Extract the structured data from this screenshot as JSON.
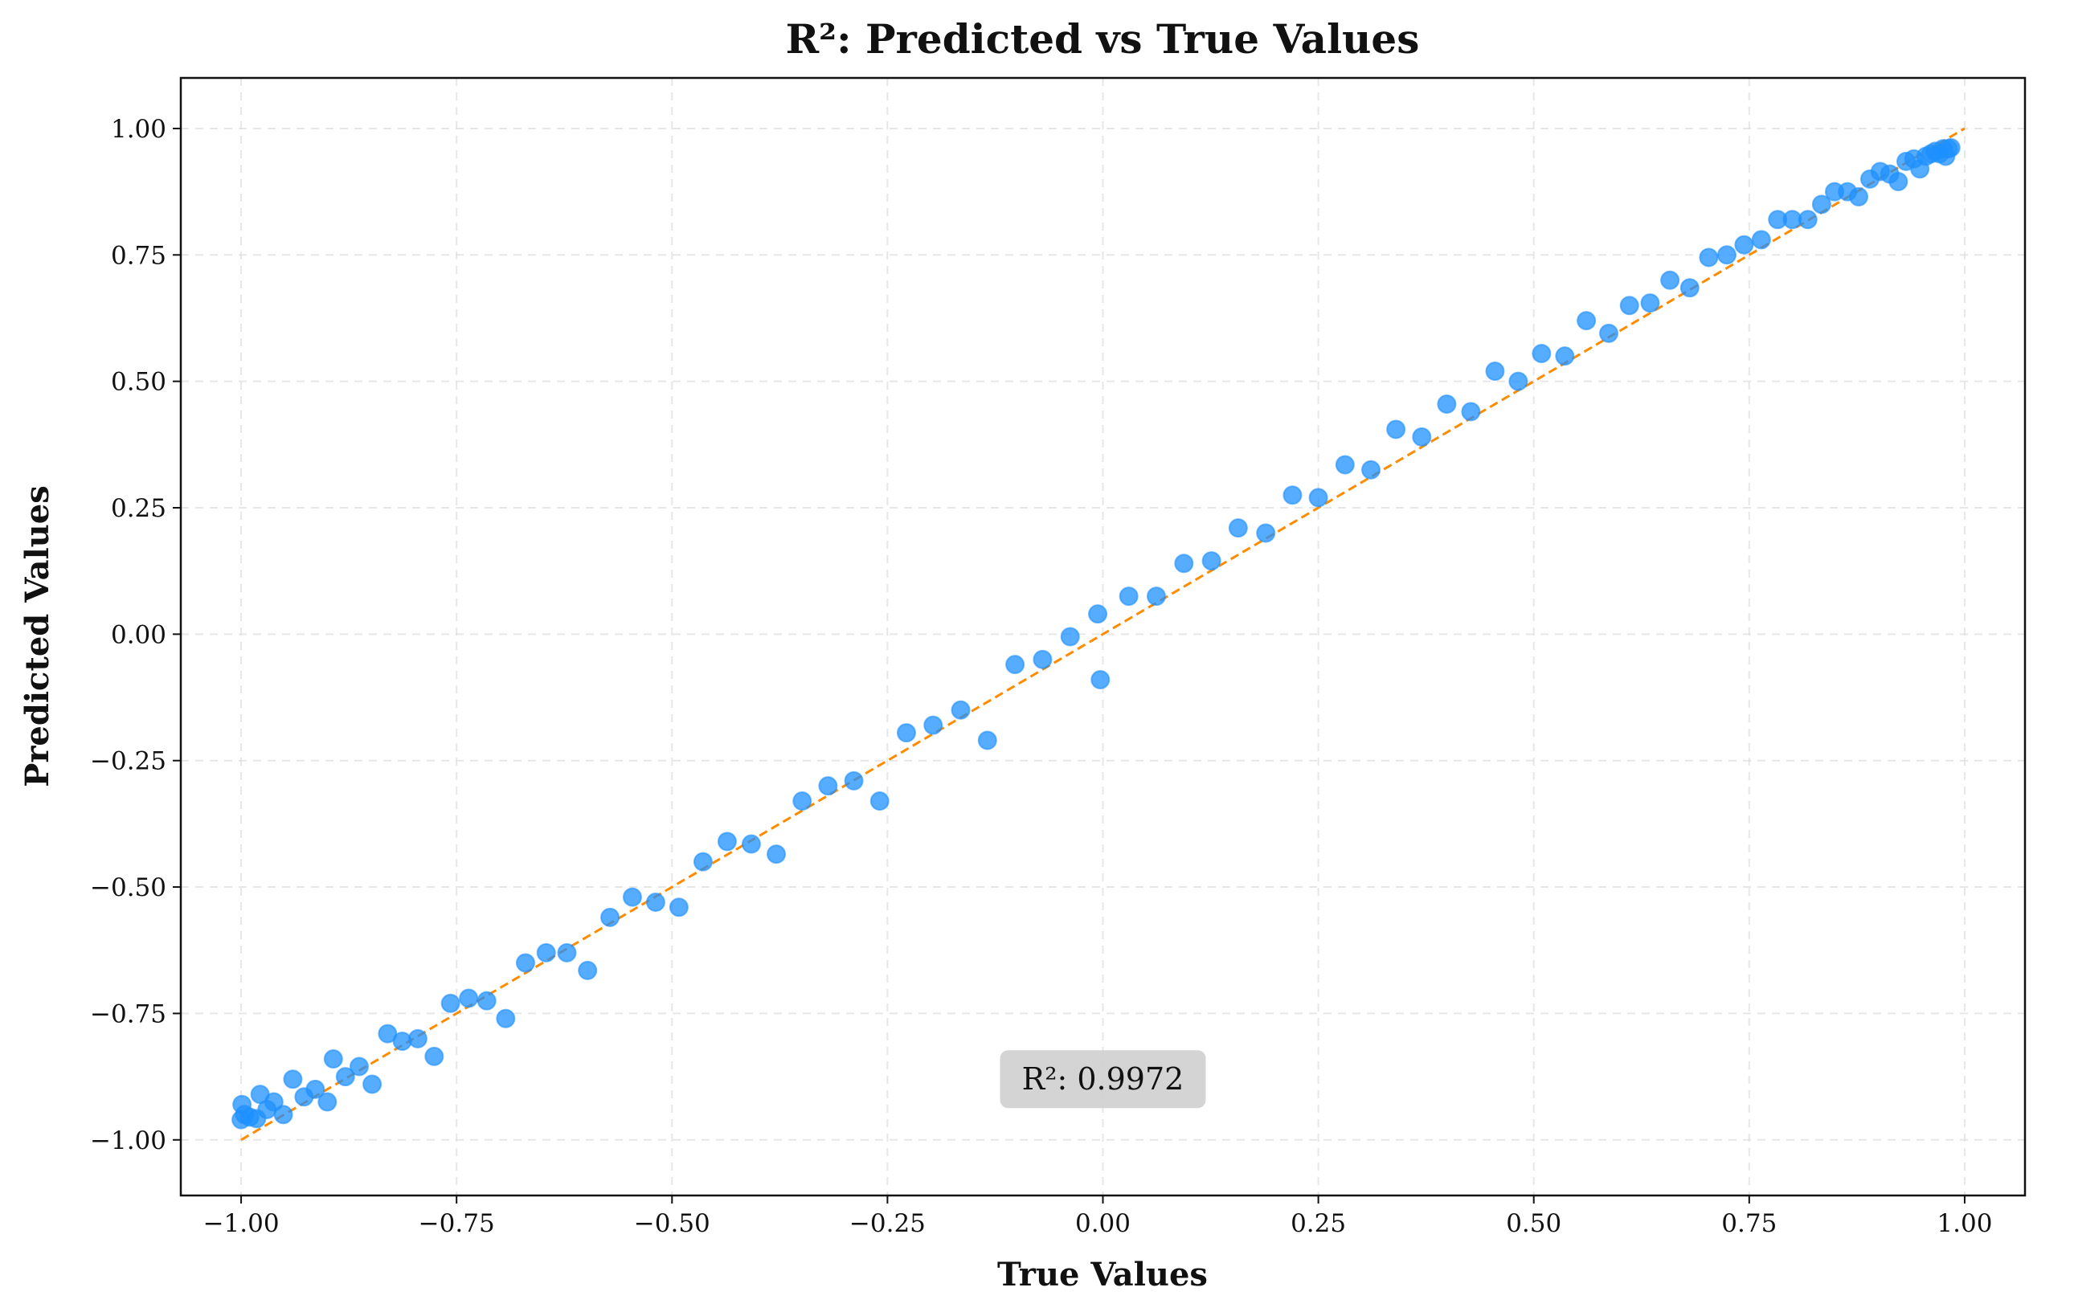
{
  "chart_data": {
    "type": "scatter",
    "title": "R²: Predicted vs True Values",
    "xlabel": "True Values",
    "ylabel": "Predicted Values",
    "xlim": [
      -1.07,
      1.07
    ],
    "ylim": [
      -1.11,
      1.1
    ],
    "xticks": [
      -1.0,
      -0.75,
      -0.5,
      -0.25,
      0.0,
      0.25,
      0.5,
      0.75,
      1.0
    ],
    "xtick_labels": [
      "−1.00",
      "−0.75",
      "−0.50",
      "−0.25",
      "0.00",
      "0.25",
      "0.50",
      "0.75",
      "1.00"
    ],
    "yticks": [
      -1.0,
      -0.75,
      -0.5,
      -0.25,
      0.0,
      0.25,
      0.5,
      0.75,
      1.0
    ],
    "ytick_labels": [
      "−1.00",
      "−0.75",
      "−0.50",
      "−0.25",
      "0.00",
      "0.25",
      "0.50",
      "0.75",
      "1.00"
    ],
    "grid": true,
    "reference_line": {
      "x": [
        -1.0,
        1.0
      ],
      "y": [
        -1.0,
        1.0
      ],
      "color": "#ff8c00",
      "style": "dashed"
    },
    "annotation": {
      "text": "R²: 0.9972",
      "x": 0.0,
      "y": -0.88
    },
    "point_color": "#1e90ff",
    "points": [
      [
        -1.0,
        -0.96
      ],
      [
        -0.999,
        -0.93
      ],
      [
        -0.996,
        -0.95
      ],
      [
        -0.99,
        -0.955
      ],
      [
        -0.982,
        -0.958
      ],
      [
        -0.978,
        -0.91
      ],
      [
        -0.97,
        -0.94
      ],
      [
        -0.962,
        -0.925
      ],
      [
        -0.951,
        -0.95
      ],
      [
        -0.94,
        -0.88
      ],
      [
        -0.927,
        -0.915
      ],
      [
        -0.914,
        -0.9
      ],
      [
        -0.9,
        -0.925
      ],
      [
        -0.893,
        -0.84
      ],
      [
        -0.879,
        -0.875
      ],
      [
        -0.863,
        -0.855
      ],
      [
        -0.848,
        -0.89
      ],
      [
        -0.83,
        -0.79
      ],
      [
        -0.813,
        -0.805
      ],
      [
        -0.795,
        -0.8
      ],
      [
        -0.776,
        -0.835
      ],
      [
        -0.757,
        -0.73
      ],
      [
        -0.736,
        -0.72
      ],
      [
        -0.715,
        -0.725
      ],
      [
        -0.693,
        -0.76
      ],
      [
        -0.67,
        -0.65
      ],
      [
        -0.646,
        -0.63
      ],
      [
        -0.622,
        -0.63
      ],
      [
        -0.598,
        -0.665
      ],
      [
        -0.572,
        -0.56
      ],
      [
        -0.546,
        -0.52
      ],
      [
        -0.519,
        -0.53
      ],
      [
        -0.492,
        -0.54
      ],
      [
        -0.464,
        -0.45
      ],
      [
        -0.436,
        -0.41
      ],
      [
        -0.408,
        -0.415
      ],
      [
        -0.379,
        -0.435
      ],
      [
        -0.349,
        -0.33
      ],
      [
        -0.319,
        -0.3
      ],
      [
        -0.289,
        -0.29
      ],
      [
        -0.259,
        -0.33
      ],
      [
        -0.228,
        -0.195
      ],
      [
        -0.197,
        -0.18
      ],
      [
        -0.165,
        -0.15
      ],
      [
        -0.134,
        -0.21
      ],
      [
        -0.102,
        -0.06
      ],
      [
        -0.07,
        -0.05
      ],
      [
        -0.038,
        -0.005
      ],
      [
        -0.006,
        0.04
      ],
      [
        -0.003,
        -0.09
      ],
      [
        0.03,
        0.075
      ],
      [
        0.062,
        0.075
      ],
      [
        0.094,
        0.14
      ],
      [
        0.126,
        0.145
      ],
      [
        0.157,
        0.21
      ],
      [
        0.189,
        0.2
      ],
      [
        0.22,
        0.275
      ],
      [
        0.25,
        0.27
      ],
      [
        0.281,
        0.335
      ],
      [
        0.311,
        0.325
      ],
      [
        0.34,
        0.405
      ],
      [
        0.37,
        0.39
      ],
      [
        0.399,
        0.455
      ],
      [
        0.427,
        0.44
      ],
      [
        0.455,
        0.52
      ],
      [
        0.482,
        0.5
      ],
      [
        0.509,
        0.555
      ],
      [
        0.536,
        0.55
      ],
      [
        0.561,
        0.62
      ],
      [
        0.587,
        0.595
      ],
      [
        0.611,
        0.65
      ],
      [
        0.635,
        0.655
      ],
      [
        0.658,
        0.7
      ],
      [
        0.681,
        0.685
      ],
      [
        0.703,
        0.745
      ],
      [
        0.724,
        0.75
      ],
      [
        0.744,
        0.77
      ],
      [
        0.764,
        0.78
      ],
      [
        0.783,
        0.82
      ],
      [
        0.8,
        0.82
      ],
      [
        0.818,
        0.82
      ],
      [
        0.834,
        0.85
      ],
      [
        0.849,
        0.875
      ],
      [
        0.864,
        0.875
      ],
      [
        0.877,
        0.865
      ],
      [
        0.89,
        0.9
      ],
      [
        0.902,
        0.915
      ],
      [
        0.913,
        0.91
      ],
      [
        0.923,
        0.895
      ],
      [
        0.932,
        0.935
      ],
      [
        0.941,
        0.94
      ],
      [
        0.948,
        0.92
      ],
      [
        0.955,
        0.945
      ],
      [
        0.961,
        0.95
      ],
      [
        0.966,
        0.955
      ],
      [
        0.971,
        0.95
      ],
      [
        0.975,
        0.96
      ],
      [
        0.978,
        0.945
      ],
      [
        0.981,
        0.96
      ],
      [
        0.984,
        0.962
      ]
    ]
  }
}
